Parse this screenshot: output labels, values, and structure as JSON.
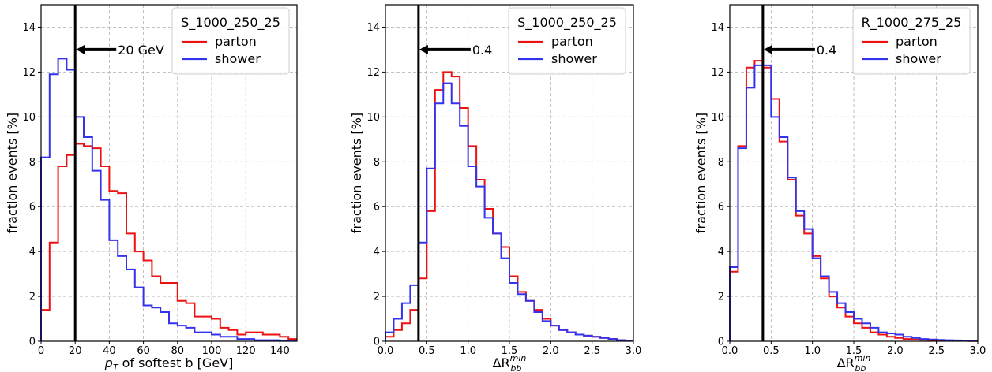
{
  "colors": {
    "parton": "#ee1111",
    "shower": "#3333ee"
  },
  "chart_data": [
    {
      "type": "line",
      "title": "",
      "xlabel_html": "p_T of softest b [GeV]",
      "xlabel_parts": {
        "p": "p",
        "sub": "T",
        "rest": " of softest b [GeV]"
      },
      "ylabel": "fraction events [%]",
      "xlim": [
        0,
        150
      ],
      "ylim": [
        0,
        15
      ],
      "xticks": [
        0,
        20,
        40,
        60,
        80,
        100,
        120,
        140
      ],
      "yticks": [
        0,
        2,
        4,
        6,
        8,
        10,
        12,
        14
      ],
      "xtick_labels": [
        "0",
        "20",
        "40",
        "60",
        "80",
        "100",
        "120",
        "140"
      ],
      "ytick_labels": [
        "0",
        "2",
        "4",
        "6",
        "8",
        "10",
        "12",
        "14"
      ],
      "legend_title": "S_1000_250_25",
      "legend_placement": "top-right",
      "grid": true,
      "vline": 20,
      "annotation": {
        "text": "20 GeV",
        "x": 20,
        "y": 13
      },
      "bin_edges": [
        0,
        5,
        10,
        15,
        20,
        25,
        30,
        35,
        40,
        45,
        50,
        55,
        60,
        65,
        70,
        75,
        80,
        85,
        90,
        95,
        100,
        105,
        110,
        115,
        120,
        125,
        130,
        135,
        140,
        145,
        150
      ],
      "series": [
        {
          "name": "parton",
          "values": [
            1.4,
            4.4,
            7.8,
            8.3,
            8.8,
            8.7,
            8.6,
            7.8,
            6.7,
            6.6,
            4.8,
            4.0,
            3.6,
            2.9,
            2.6,
            2.6,
            1.8,
            1.7,
            1.1,
            1.1,
            1.0,
            0.6,
            0.5,
            0.3,
            0.4,
            0.4,
            0.3,
            0.3,
            0.2,
            0.1
          ]
        },
        {
          "name": "shower",
          "values": [
            8.2,
            11.9,
            12.6,
            12.1,
            10.0,
            9.1,
            7.6,
            6.3,
            4.5,
            3.8,
            3.2,
            2.4,
            1.6,
            1.5,
            1.3,
            0.8,
            0.7,
            0.6,
            0.4,
            0.4,
            0.3,
            0.2,
            0.2,
            0.1,
            0.1,
            0.05,
            0.05,
            0.05,
            0.02,
            0.02
          ]
        }
      ]
    },
    {
      "type": "line",
      "title": "",
      "xlabel_parts": {
        "p": "ΔR",
        "sub": "bb",
        "sup": "min"
      },
      "ylabel": "fraction events [%]",
      "xlim": [
        0,
        3
      ],
      "ylim": [
        0,
        15
      ],
      "xticks": [
        0,
        0.5,
        1,
        1.5,
        2,
        2.5,
        3
      ],
      "yticks": [
        0,
        2,
        4,
        6,
        8,
        10,
        12,
        14
      ],
      "xtick_labels": [
        "0.0",
        "0.5",
        "1.0",
        "1.5",
        "2.0",
        "2.5",
        "3.0"
      ],
      "ytick_labels": [
        "0",
        "2",
        "4",
        "6",
        "8",
        "10",
        "12",
        "14"
      ],
      "legend_title": "S_1000_250_25",
      "legend_placement": "top-right",
      "grid": true,
      "vline": 0.4,
      "annotation": {
        "text": "0.4",
        "x": 0.4,
        "y": 13
      },
      "bin_edges": [
        0,
        0.1,
        0.2,
        0.3,
        0.4,
        0.5,
        0.6,
        0.7,
        0.8,
        0.9,
        1.0,
        1.1,
        1.2,
        1.3,
        1.4,
        1.5,
        1.6,
        1.7,
        1.8,
        1.9,
        2.0,
        2.1,
        2.2,
        2.3,
        2.4,
        2.5,
        2.6,
        2.7,
        2.8,
        2.9,
        3.0
      ],
      "series": [
        {
          "name": "parton",
          "values": [
            0.2,
            0.5,
            0.8,
            1.4,
            2.8,
            5.8,
            11.2,
            12.0,
            11.8,
            10.4,
            8.7,
            7.2,
            5.9,
            4.8,
            4.2,
            2.9,
            2.2,
            1.8,
            1.4,
            1.0,
            0.7,
            0.5,
            0.4,
            0.3,
            0.25,
            0.2,
            0.15,
            0.1,
            0.05,
            0.02
          ]
        },
        {
          "name": "shower",
          "values": [
            0.4,
            1.0,
            1.7,
            2.5,
            4.4,
            7.7,
            10.6,
            11.5,
            10.6,
            9.6,
            7.8,
            6.9,
            5.5,
            4.8,
            3.7,
            2.6,
            2.1,
            1.8,
            1.3,
            0.9,
            0.7,
            0.5,
            0.4,
            0.3,
            0.25,
            0.2,
            0.15,
            0.1,
            0.05,
            0.02
          ]
        }
      ]
    },
    {
      "type": "line",
      "title": "",
      "xlabel_parts": {
        "p": "ΔR",
        "sub": "bb",
        "sup": "min"
      },
      "ylabel": "fraction events [%]",
      "xlim": [
        0,
        3
      ],
      "ylim": [
        0,
        15
      ],
      "xticks": [
        0,
        0.5,
        1,
        1.5,
        2,
        2.5,
        3
      ],
      "yticks": [
        0,
        2,
        4,
        6,
        8,
        10,
        12,
        14
      ],
      "xtick_labels": [
        "0.0",
        "0.5",
        "1.0",
        "1.5",
        "2.0",
        "2.5",
        "3.0"
      ],
      "ytick_labels": [
        "0",
        "2",
        "4",
        "6",
        "8",
        "10",
        "12",
        "14"
      ],
      "legend_title": "R_1000_275_25",
      "legend_placement": "top-right",
      "grid": true,
      "vline": 0.4,
      "annotation": {
        "text": "0.4",
        "x": 0.4,
        "y": 13
      },
      "bin_edges": [
        0,
        0.1,
        0.2,
        0.3,
        0.4,
        0.5,
        0.6,
        0.7,
        0.8,
        0.9,
        1.0,
        1.1,
        1.2,
        1.3,
        1.4,
        1.5,
        1.6,
        1.7,
        1.8,
        1.9,
        2.0,
        2.1,
        2.2,
        2.3,
        2.4,
        2.5,
        2.6,
        2.7,
        2.8,
        2.9,
        3.0
      ],
      "series": [
        {
          "name": "parton",
          "values": [
            3.1,
            8.7,
            12.2,
            12.5,
            12.2,
            10.8,
            8.9,
            7.2,
            5.6,
            4.8,
            3.8,
            2.8,
            2.0,
            1.5,
            1.1,
            0.8,
            0.6,
            0.4,
            0.3,
            0.2,
            0.15,
            0.1,
            0.08,
            0.06,
            0.05,
            0.04,
            0.03,
            0.02,
            0.02,
            0.01
          ]
        },
        {
          "name": "shower",
          "values": [
            3.3,
            8.6,
            11.3,
            12.3,
            12.3,
            10.0,
            9.1,
            7.3,
            5.8,
            5.0,
            3.7,
            2.9,
            2.2,
            1.7,
            1.3,
            1.0,
            0.8,
            0.6,
            0.4,
            0.35,
            0.3,
            0.2,
            0.15,
            0.1,
            0.08,
            0.06,
            0.05,
            0.04,
            0.03,
            0.02
          ]
        }
      ]
    }
  ]
}
